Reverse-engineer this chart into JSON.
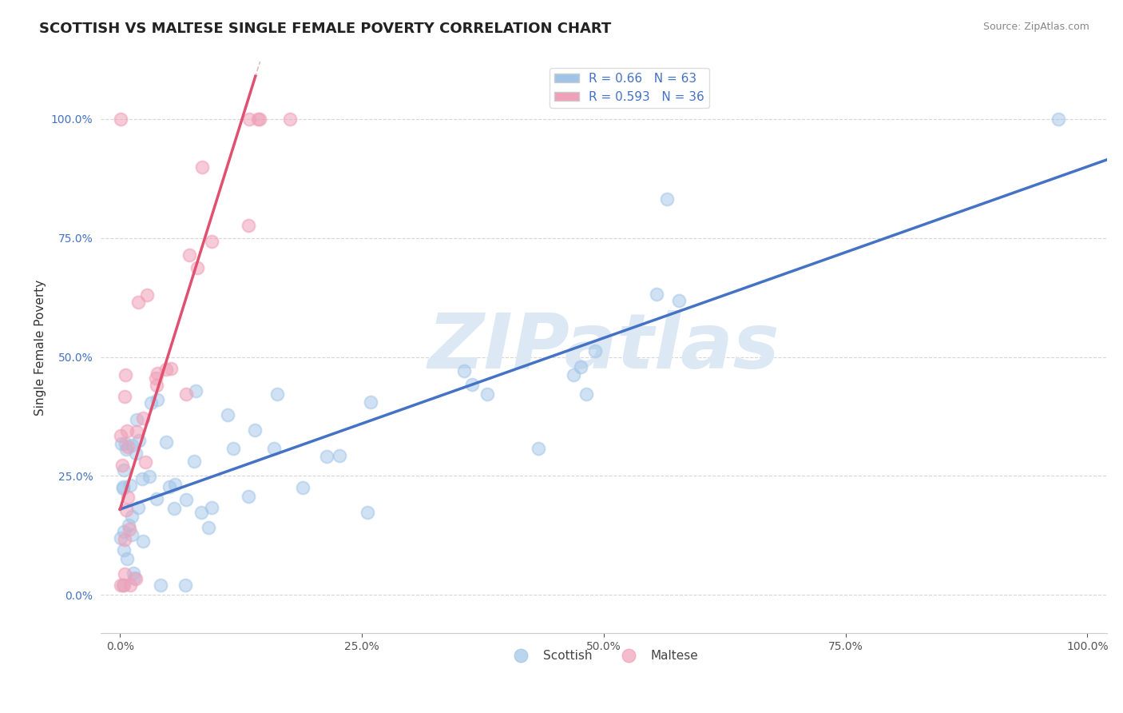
{
  "title": "SCOTTISH VS MALTESE SINGLE FEMALE POVERTY CORRELATION CHART",
  "source_text": "Source: ZipAtlas.com",
  "ylabel": "Single Female Poverty",
  "watermark": "ZIPatlas",
  "scottish_R": 0.66,
  "scottish_N": 63,
  "maltese_R": 0.593,
  "maltese_N": 36,
  "scottish_color": "#a0c4e8",
  "maltese_color": "#f0a0b8",
  "scottish_line_color": "#4472c4",
  "maltese_line_color": "#e05070",
  "ref_line_color": "#d0a0a8",
  "background_color": "#ffffff",
  "title_fontsize": 13,
  "axis_label_fontsize": 11,
  "tick_fontsize": 10,
  "legend_fontsize": 11,
  "source_fontsize": 9,
  "watermark_color": "#dce8f4",
  "watermark_fontsize": 70,
  "xlim": [
    -2,
    102
  ],
  "ylim": [
    -8,
    112
  ],
  "xticks": [
    0,
    25,
    50,
    75,
    100
  ],
  "yticks": [
    0,
    25,
    50,
    75,
    100
  ],
  "xtick_labels": [
    "0.0%",
    "25.0%",
    "50.0%",
    "75.0%",
    "100.0%"
  ],
  "ytick_labels": [
    "0.0%",
    "25.0%",
    "50.0%",
    "75.0%",
    "100.0%"
  ],
  "scottish_seed": 42,
  "maltese_seed": 7,
  "scottish_slope": 0.72,
  "scottish_intercept": 18.0,
  "scottish_noise_std": 13.0,
  "maltese_slope": 6.5,
  "maltese_intercept": 18.0,
  "maltese_noise_std": 14.0
}
